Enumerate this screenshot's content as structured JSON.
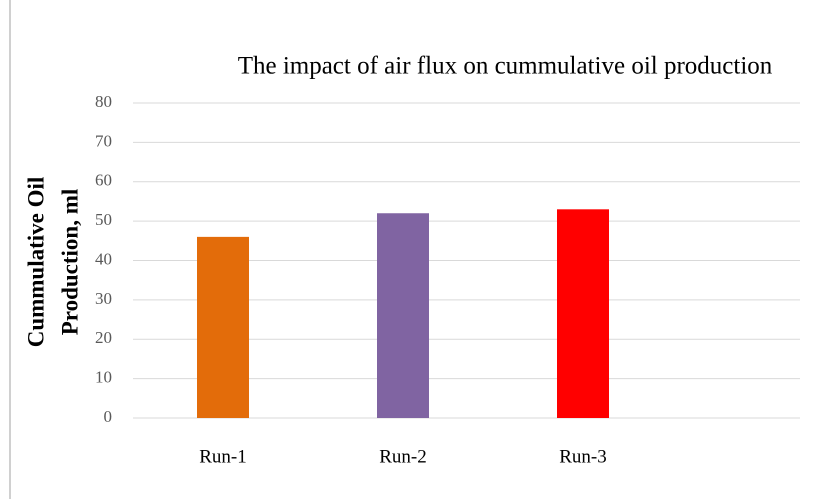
{
  "chart_data": {
    "type": "bar",
    "title": "The impact of air flux on cummulative oil production",
    "ylabel": [
      "Cummulative Oil",
      "Production, ml"
    ],
    "categories": [
      "Run-1",
      "Run-2",
      "Run-3"
    ],
    "values": [
      46,
      52,
      53
    ],
    "colors": [
      "#e36c0a",
      "#8064a2",
      "#ff0000"
    ],
    "ylim": [
      0,
      80
    ],
    "yticks": [
      0,
      10,
      20,
      30,
      40,
      50,
      60,
      70,
      80
    ],
    "grid": true
  }
}
